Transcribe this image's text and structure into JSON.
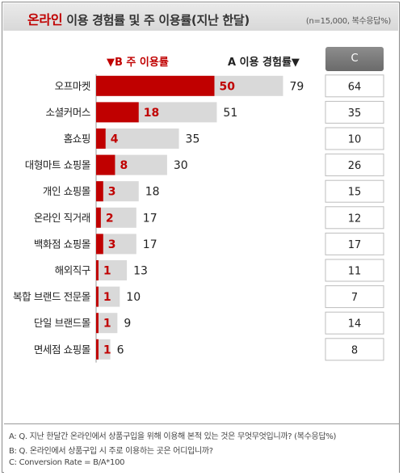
{
  "header": {
    "title_highlight": "온라인",
    "title_rest": "이용 경험률 및 주 이용률(지난 한달)",
    "note": "(n=15,000, 복수응답%)"
  },
  "legend": {
    "b_label": "▼B 주 이용률",
    "a_label": "A 이용 경험률▼",
    "c_label": "C"
  },
  "colors": {
    "bar_b": "#c00000",
    "bar_a": "#d9d9d9",
    "b_label_color": "#c00000"
  },
  "chart_data": {
    "type": "bar",
    "orientation": "horizontal",
    "categories": [
      "오프마켓",
      "소셜커머스",
      "홈쇼핑",
      "대형마트 쇼핑몰",
      "개인 쇼핑몰",
      "온라인 직거래",
      "백화점 쇼핑몰",
      "해외직구",
      "복합 브랜드 전문몰",
      "단일 브랜드몰",
      "면세점 쇼핑몰"
    ],
    "series": [
      {
        "name": "A 이용 경험률",
        "values": [
          79,
          51,
          35,
          30,
          18,
          17,
          17,
          13,
          10,
          9,
          6
        ]
      },
      {
        "name": "B 주 이용률",
        "values": [
          50,
          18,
          4,
          8,
          3,
          2,
          3,
          1,
          1,
          1,
          1
        ]
      },
      {
        "name": "C",
        "values": [
          64,
          35,
          10,
          26,
          15,
          12,
          17,
          11,
          7,
          14,
          8
        ]
      }
    ],
    "xlim": [
      0,
      100
    ],
    "legend_position": "top"
  },
  "footer": {
    "line_a": "A: Q. 지난 한달간 온라인에서 상품구입을 위해 이용해 본적 있는 것은 무엇무엇입니까? (복수응답%)",
    "line_b": "B: Q. 온라인에서 상품구입 시 주로 이용하는 곳은 어디입니까?",
    "line_c": "C: Conversion Rate = B/A*100"
  }
}
